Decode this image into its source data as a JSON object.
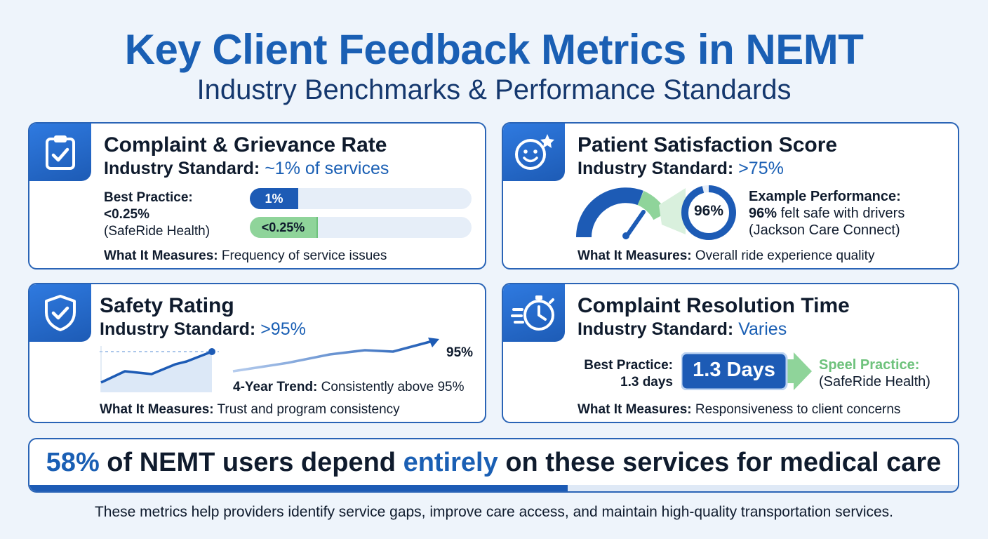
{
  "header": {
    "title": "Key Client Feedback Metrics in NEMT",
    "subtitle": "Industry Benchmarks & Performance Standards"
  },
  "cards": {
    "complaint": {
      "icon": "clipboard-check-icon",
      "title": "Complaint & Grievance Rate",
      "standard_label": "Industry Standard:",
      "standard_value": "~1% of services",
      "best_label": "Best Practice:",
      "best_value": "<0.25%",
      "best_source": "(SafeRide Health)",
      "bar_standard_label": "1%",
      "bar_best_label": "<0.25%",
      "measure_label": "What It Measures:",
      "measure_text": "Frequency of service issues"
    },
    "satisfaction": {
      "icon": "smiley-star-icon",
      "title": "Patient Satisfaction Score",
      "standard_label": "Industry Standard:",
      "standard_value": ">75%",
      "donut_value": "96%",
      "donut_fraction": 0.96,
      "example_label": "Example Performance:",
      "example_value": "96%",
      "example_text": "felt safe with drivers",
      "example_source": "(Jackson Care Connect)",
      "measure_label": "What It Measures:",
      "measure_text": "Overall ride experience quality"
    },
    "safety": {
      "icon": "shield-check-icon",
      "title": "Safety Rating",
      "standard_label": "Industry Standard:",
      "standard_value": ">95%",
      "trend_end_label": "95%",
      "trend_label": "4-Year Trend:",
      "trend_text": "Consistently above 95%",
      "measure_label": "What It Measures:",
      "measure_text": "Trust and program consistency"
    },
    "resolution": {
      "icon": "stopwatch-icon",
      "title": "Complaint Resolution Time",
      "standard_label": "Industry Standard:",
      "standard_value": "Varies",
      "best_label": "Best Practice:",
      "best_value": "1.3 days",
      "badge": "1.3 Days",
      "speel_label": "Speel Practice:",
      "speel_source": "(SafeRide Health)",
      "measure_label": "What It Measures:",
      "measure_text": "Responsiveness to client concerns"
    }
  },
  "banner": {
    "pct": "58%",
    "text_a": "of NEMT users depend",
    "highlight": "entirely",
    "text_b": "on these services for medical care",
    "progress": 0.58
  },
  "footer": "These metrics help providers identify service gaps, improve care access, and maintain high-quality transportation services.",
  "colors": {
    "primary": "#1a5fb4",
    "dark_blue": "#1d5bb5",
    "green": "#8fd49a",
    "green_text": "#6ec27c",
    "light_track": "#e6eef8"
  }
}
